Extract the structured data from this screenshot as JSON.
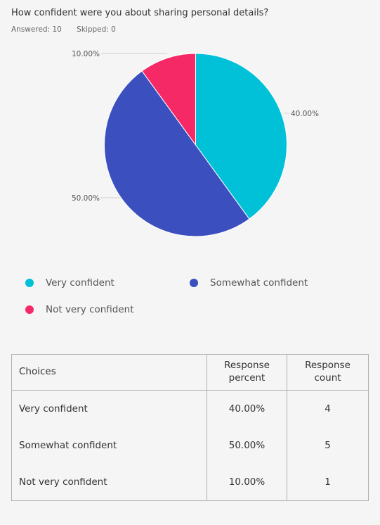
{
  "question": "How confident were you about sharing personal details?",
  "stats": {
    "answered": "Answered: 10",
    "skipped": "Skipped: 0"
  },
  "colors": {
    "very": "#00c1d8",
    "somewhat": "#3b4fbf",
    "not": "#f52965"
  },
  "chart_data": {
    "type": "pie",
    "categories": [
      "Very confident",
      "Somewhat confident",
      "Not very confident"
    ],
    "values": [
      40,
      50,
      10
    ],
    "labels": [
      "40.00%",
      "50.00%",
      "10.00%"
    ],
    "colors": [
      "#00c1d8",
      "#3b4fbf",
      "#f52965"
    ],
    "legend": "bottom"
  },
  "table": {
    "headers": [
      "Choices",
      "Response percent",
      "Response count"
    ],
    "rows": [
      {
        "choice": "Very confident",
        "percent": "40.00%",
        "count": "4"
      },
      {
        "choice": "Somewhat confident",
        "percent": "50.00%",
        "count": "5"
      },
      {
        "choice": "Not very confident",
        "percent": "10.00%",
        "count": "1"
      }
    ]
  }
}
